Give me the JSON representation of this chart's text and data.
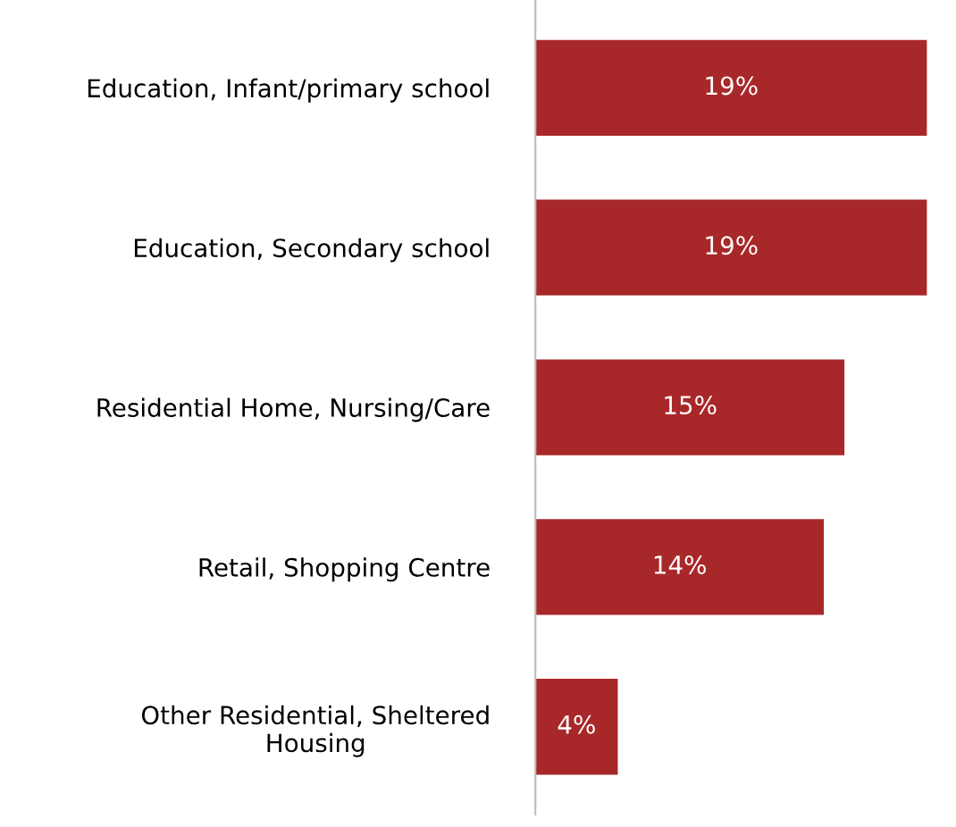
{
  "chart_data": {
    "type": "bar",
    "orientation": "horizontal",
    "categories": [
      "Education, Infant/primary school",
      "Education, Secondary school",
      "Residential Home, Nursing/Care",
      "Retail, Shopping Centre",
      "Other Residential, Sheltered\nHousing"
    ],
    "values": [
      19,
      19,
      15,
      14,
      4
    ],
    "value_labels": [
      "19%",
      "19%",
      "15%",
      "14%",
      "4%"
    ],
    "color": "#a8282a",
    "grid": false,
    "legend": false
  }
}
